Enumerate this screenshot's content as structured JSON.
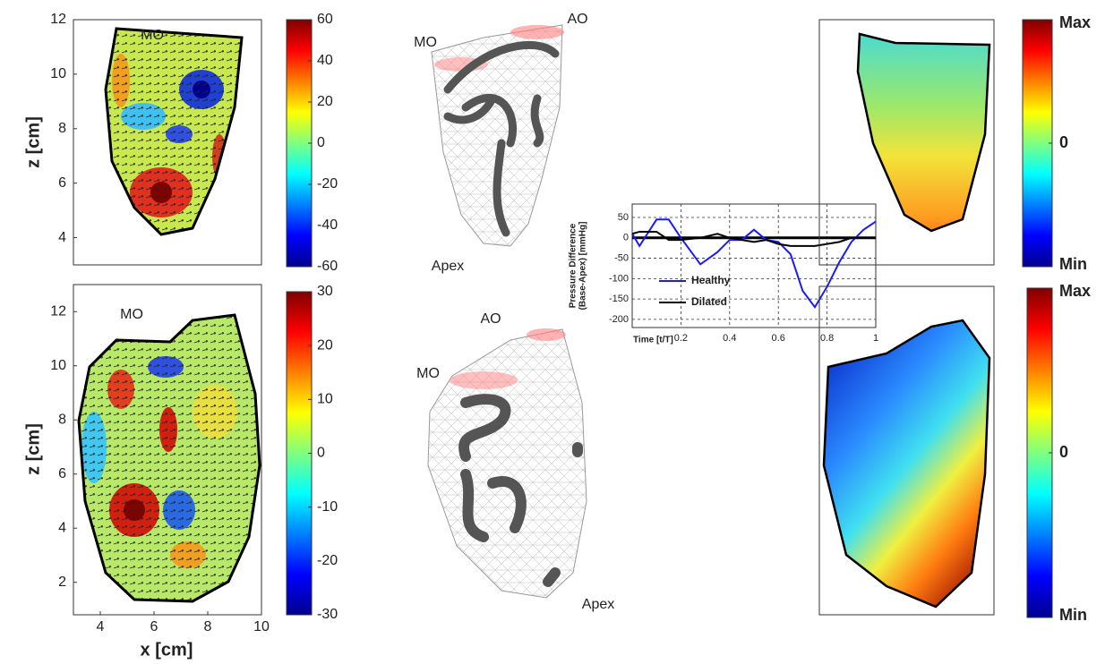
{
  "chart_data": [
    {
      "type": "field",
      "ylabel": "z [cm]",
      "annotations": [
        "MO"
      ],
      "xlim": [
        3,
        10
      ],
      "ylim": [
        3,
        12
      ],
      "yticks": [
        4,
        6,
        8,
        10,
        12
      ],
      "colorbar": {
        "lim": [
          -60,
          60
        ],
        "ticks": [
          -60,
          -40,
          -20,
          0,
          20,
          40,
          60
        ]
      }
    },
    {
      "type": "field",
      "xlabel": "x [cm]",
      "ylabel": "z [cm]",
      "annotations": [
        "MO"
      ],
      "xlim": [
        3,
        10
      ],
      "xticks": [
        4,
        6,
        8,
        10
      ],
      "ylim": [
        0.8,
        13
      ],
      "yticks": [
        2,
        4,
        6,
        8,
        10,
        12
      ],
      "colorbar": {
        "lim": [
          -30,
          30
        ],
        "ticks": [
          -30,
          -20,
          -10,
          0,
          10,
          20,
          30
        ]
      }
    },
    {
      "type": "mesh",
      "annotations": [
        "MO",
        "AO",
        "Apex"
      ]
    },
    {
      "type": "mesh",
      "annotations": [
        "AO",
        "MO",
        "Apex"
      ]
    },
    {
      "type": "line",
      "ylabel": [
        "Pressure Difference",
        "(Base-Apex) [mmHg]"
      ],
      "xlabel": "Time [t/T]",
      "xlim": [
        0,
        1
      ],
      "xticks": [
        0.2,
        0.4,
        0.6,
        0.8,
        1
      ],
      "ylim": [
        -220,
        83
      ],
      "yticks": [
        -200,
        -150,
        -100,
        -50,
        0,
        50
      ],
      "grid": true,
      "legend": "lower left",
      "x": [
        0,
        0.03,
        0.1,
        0.15,
        0.2,
        0.28,
        0.35,
        0.4,
        0.45,
        0.5,
        0.55,
        0.6,
        0.65,
        0.7,
        0.75,
        0.8,
        0.85,
        0.9,
        0.95,
        1
      ],
      "series": [
        {
          "name": "Healthy",
          "color": "#1a1aff",
          "values": [
            10,
            -20,
            45,
            45,
            0,
            -65,
            -35,
            -5,
            -5,
            20,
            -5,
            -10,
            -40,
            -130,
            -170,
            -120,
            -60,
            -10,
            20,
            40
          ]
        },
        {
          "name": "Dilated",
          "color": "#000000",
          "values": [
            10,
            15,
            15,
            -5,
            -5,
            0,
            10,
            0,
            -5,
            -10,
            -5,
            -15,
            -20,
            -20,
            -20,
            -15,
            -10,
            0,
            0,
            0
          ]
        }
      ]
    },
    {
      "type": "field",
      "colorbar": {
        "max_label": "Max",
        "min_label": "Min",
        "ticks": [
          0
        ]
      }
    },
    {
      "type": "field",
      "colorbar": {
        "max_label": "Max",
        "min_label": "Min",
        "ticks": [
          0
        ]
      }
    }
  ]
}
